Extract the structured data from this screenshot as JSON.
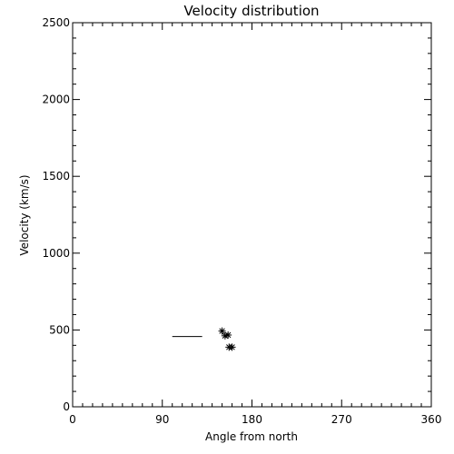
{
  "chart_data": {
    "type": "scatter",
    "title": "Velocity distribution",
    "xlabel": "Angle from north",
    "ylabel": "Velocity (km/s)",
    "xlim": [
      0,
      360
    ],
    "ylim": [
      0,
      2500
    ],
    "xticks": [
      0,
      90,
      180,
      270,
      360
    ],
    "yticks": [
      0,
      500,
      1000,
      1500,
      2000,
      2500
    ],
    "grid": false,
    "series": [
      {
        "marker": "asterisk",
        "points": [
          {
            "x": 150,
            "y": 493
          },
          {
            "x": 153,
            "y": 462
          },
          {
            "x": 156,
            "y": 467
          },
          {
            "x": 157,
            "y": 388
          },
          {
            "x": 160,
            "y": 388
          }
        ]
      }
    ],
    "segments": [
      {
        "x0": 100,
        "x1": 130,
        "y": 457
      }
    ],
    "colors": {
      "axis": "#000000",
      "marker": "#000000",
      "background": "#ffffff"
    }
  }
}
